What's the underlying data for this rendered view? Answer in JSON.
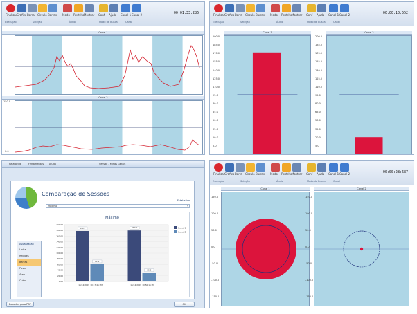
{
  "ribbon": {
    "labels": [
      "Finalizar",
      "Gráfico",
      "Barra",
      "Círculo",
      "Barras",
      "Modo",
      "Restrito",
      "Mostrar",
      "Conf",
      "Ajuda",
      "Canal 1",
      "Canal 2"
    ],
    "groups": [
      "Execução",
      "Seleção",
      "Áudio",
      "Modo de Busca",
      "Canal"
    ]
  },
  "panels": {
    "line": {
      "clock": "00:01:33:286",
      "caption1": "Canal 1",
      "caption2": "Canal 2",
      "ticks1": [
        "",
        "",
        "",
        "",
        ""
      ],
      "ticks2": [
        "150.0",
        "",
        "",
        "",
        "0.0"
      ]
    },
    "bar": {
      "clock": "00:00:10:552",
      "caption1": "Canal 1",
      "caption2": "Canal 2"
    },
    "circle": {
      "clock": "00:00:28:687",
      "caption1": "Canal 1",
      "caption2": "Canal 2"
    }
  },
  "dialog": {
    "titlebar": "Sessão - Minas Gerais",
    "tabs": [
      "Relatórios",
      "Ferramentas",
      "Ajuda"
    ],
    "title": "Comparação de Sessões",
    "estatistica_label": "Estatística",
    "select_value": "Máximo",
    "chart_title": "Máximo",
    "side_header": "Visualização",
    "side_items": [
      "Linha",
      "Regiões",
      "Barras",
      "Pizza",
      "Área",
      "Cubo"
    ],
    "export_button": "Exportar para PDF",
    "ok_button": "OK"
  },
  "chart_data": {
    "type": "bar",
    "title": "Máximo",
    "categories": [
      "15/12/2007 10:17:45 PM",
      "15/12/2007 10:50:15 PM"
    ],
    "series": [
      {
        "name": "Canal 1",
        "values": [
          178.1,
          180.0
        ],
        "color": "#3b4a7a"
      },
      {
        "name": "Canal 2",
        "values": [
          61.1,
          30.0
        ],
        "color": "#5f8ab8"
      }
    ],
    "data_labels": [
      "178.1",
      "61.1",
      "180.0",
      "30.0"
    ],
    "ylim": [
      0,
      200
    ],
    "yticks": [
      "200.00",
      "180.00",
      "160.00",
      "140.00",
      "120.00",
      "100.00",
      "80.00",
      "60.00",
      "40.00",
      "20.00",
      "0.00"
    ]
  },
  "bar_channels": {
    "canal1": 172,
    "canal2": 28,
    "max": 200,
    "line_level": 100,
    "yticks1": [
      "200.0",
      "185.0",
      "170.0",
      "155.0",
      "140.0",
      "125.0",
      "110.0",
      "95.0",
      "80.0",
      "65.0",
      "50.0",
      "35.0",
      "20.0",
      "5.0"
    ],
    "yticks2": [
      "200.0",
      "185.0",
      "170.0",
      "155.0",
      "140.0",
      "125.0",
      "110.0",
      "95.0",
      "80.0",
      "65.0",
      "50.0",
      "35.0",
      "20.0",
      "5.0"
    ]
  },
  "circle_ticks": [
    "150.0",
    "100.0",
    "50.0",
    "0.0",
    "-50.0",
    "-100.0",
    "-150.0"
  ]
}
